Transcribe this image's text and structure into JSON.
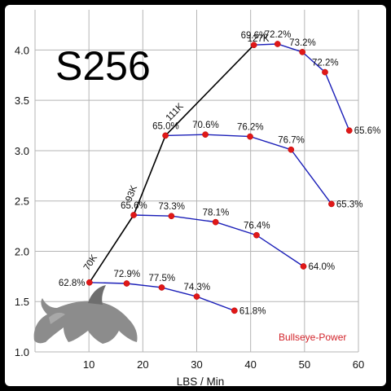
{
  "colors": {
    "background": "#ffffff",
    "frame": "#000000",
    "series_line": "#1b1fb8",
    "point": "#e01818",
    "surge_line": "#000000",
    "watermark": "#d2232a",
    "logo": "#8c8c8c"
  },
  "logo_icon": "bull-logo-icon",
  "chart_data": {
    "type": "line",
    "title": "S256",
    "xlabel": "LBS / Min",
    "ylabel": "",
    "xlim": [
      0,
      60
    ],
    "ylim": [
      1.0,
      4.4
    ],
    "grid": true,
    "x_ticks": [
      "10",
      "20",
      "30",
      "40",
      "50",
      "60"
    ],
    "y_ticks": [
      "1.0",
      "1.5",
      "2.0",
      "2.5",
      "3.0",
      "3.5",
      "4.0"
    ],
    "watermark": "Bullseye-Power",
    "surge_line": {
      "points": [
        {
          "x": 10.1,
          "y": 1.69
        },
        {
          "x": 18.3,
          "y": 2.36
        },
        {
          "x": 24.2,
          "y": 3.15
        },
        {
          "x": 40.6,
          "y": 4.05
        }
      ],
      "labels": [
        "70K",
        "93K",
        "111K",
        "127K"
      ]
    },
    "series": [
      {
        "points": [
          {
            "x": 10.1,
            "y": 1.69,
            "label": "62.8%"
          },
          {
            "x": 17.0,
            "y": 1.68,
            "label": "72.9%"
          },
          {
            "x": 23.5,
            "y": 1.64,
            "label": "77.5%"
          },
          {
            "x": 30.0,
            "y": 1.55,
            "label": "74.3%"
          },
          {
            "x": 37.0,
            "y": 1.41,
            "label": "61.8%"
          }
        ]
      },
      {
        "points": [
          {
            "x": 18.3,
            "y": 2.36,
            "label": "65.6%"
          },
          {
            "x": 25.3,
            "y": 2.35,
            "label": "73.3%"
          },
          {
            "x": 33.5,
            "y": 2.29,
            "label": "78.1%"
          },
          {
            "x": 41.1,
            "y": 2.16,
            "label": "76.4%"
          },
          {
            "x": 49.8,
            "y": 1.85,
            "label": "64.0%"
          }
        ]
      },
      {
        "points": [
          {
            "x": 24.2,
            "y": 3.15,
            "label": "65.0%"
          },
          {
            "x": 31.6,
            "y": 3.16,
            "label": "70.6%"
          },
          {
            "x": 39.9,
            "y": 3.14,
            "label": "76.2%"
          },
          {
            "x": 47.5,
            "y": 3.01,
            "label": "76.7%"
          },
          {
            "x": 55.0,
            "y": 2.47,
            "label": "65.3%"
          }
        ]
      },
      {
        "points": [
          {
            "x": 40.6,
            "y": 4.05,
            "label": "69.6%"
          },
          {
            "x": 45.0,
            "y": 4.06,
            "label": "72.2%"
          },
          {
            "x": 49.6,
            "y": 3.98,
            "label": "73.2%"
          },
          {
            "x": 53.8,
            "y": 3.78,
            "label": "72.2%"
          },
          {
            "x": 58.3,
            "y": 3.2,
            "label": "65.6%"
          }
        ]
      }
    ]
  }
}
